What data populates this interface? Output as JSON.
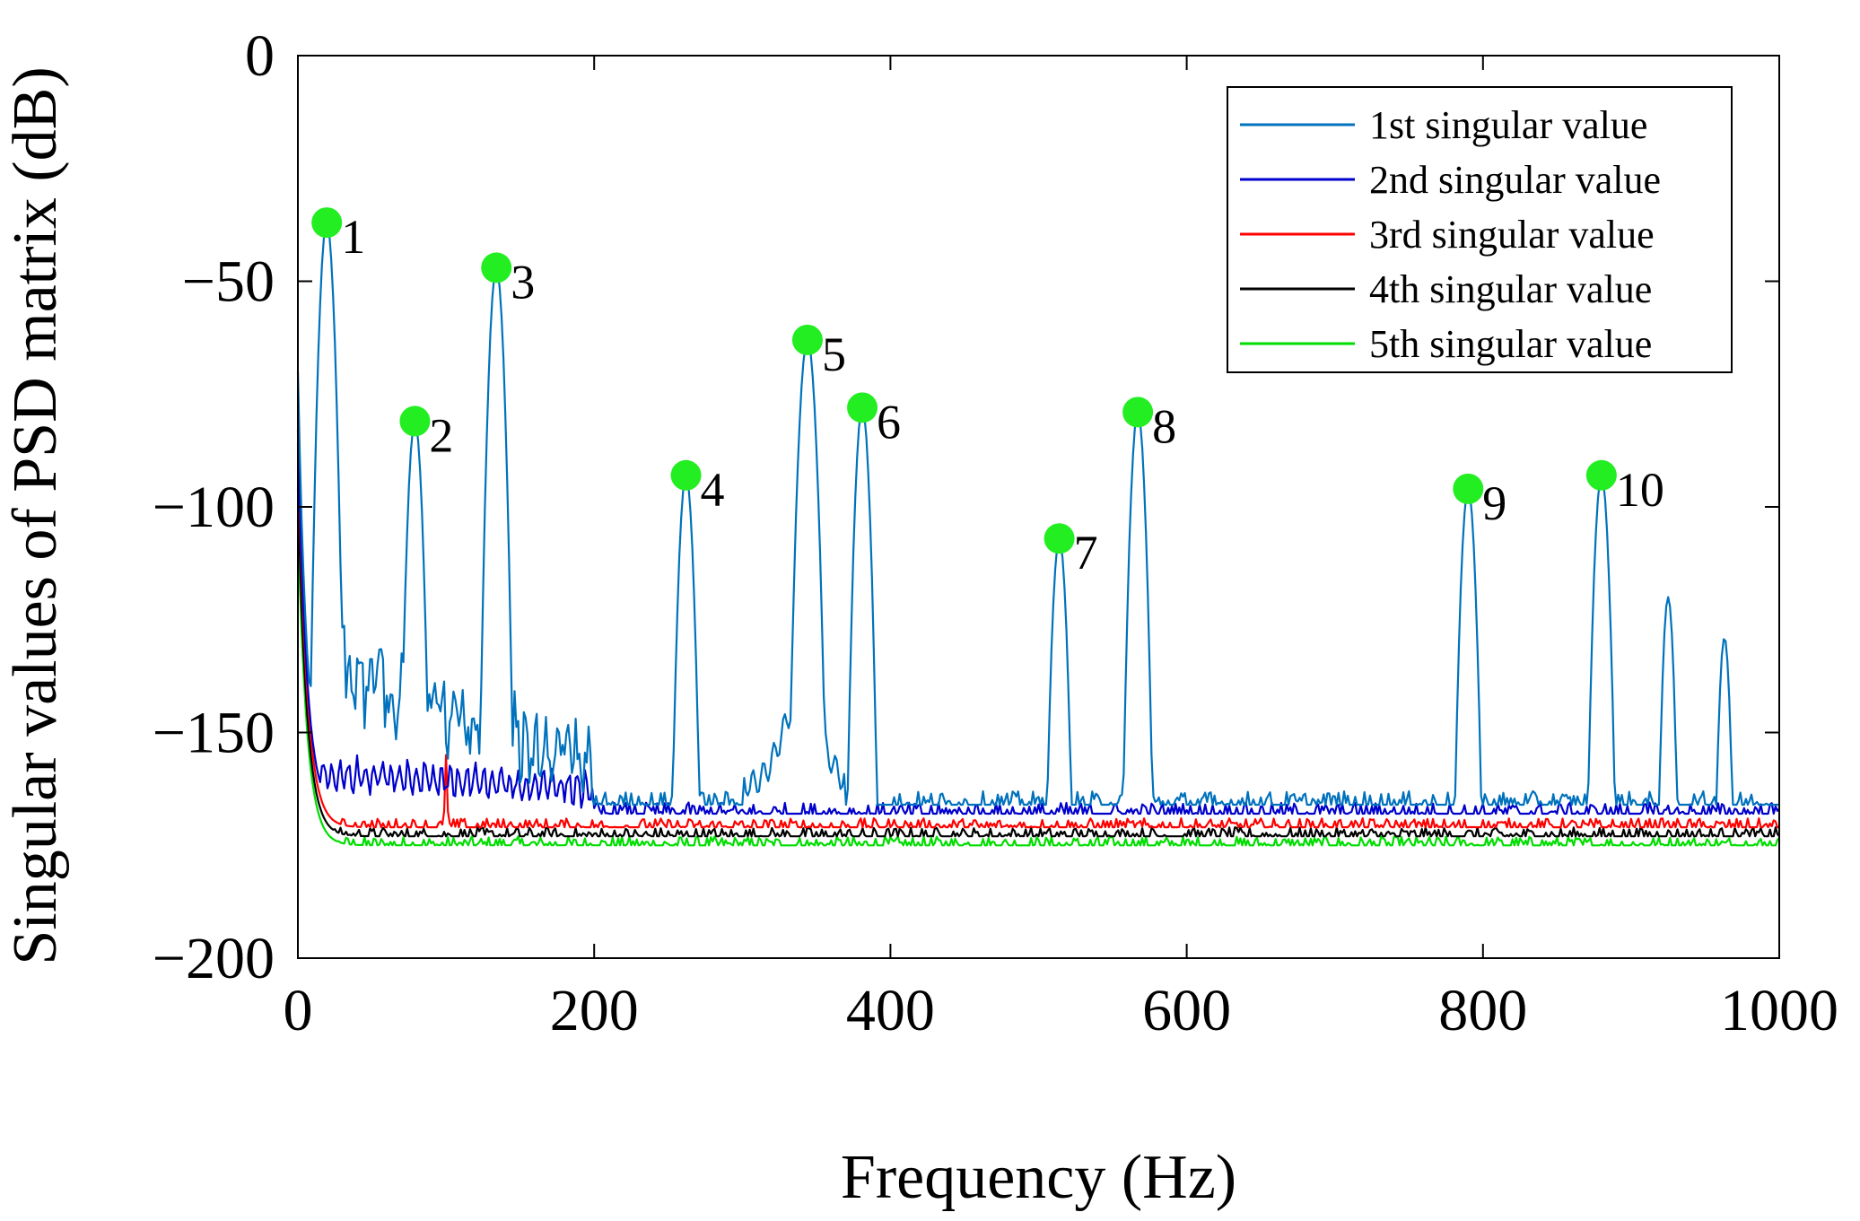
{
  "chart_data": {
    "type": "line",
    "xlabel": "Frequency (Hz)",
    "ylabel": "Singular values of PSD matrix (dB)",
    "xlim": [
      0,
      1000
    ],
    "ylim": [
      -200,
      0
    ],
    "xticks": [
      0,
      200,
      400,
      600,
      800,
      1000
    ],
    "yticks": [
      0,
      -50,
      -100,
      -150,
      -200
    ],
    "xtick_labels": [
      "0",
      "200",
      "400",
      "600",
      "800",
      "1000"
    ],
    "ytick_labels": [
      "0",
      "−50",
      "−100",
      "−150",
      "−200"
    ],
    "grid": false,
    "legend_position": "top-right",
    "series": [
      {
        "name": "1st singular value",
        "color": "#0072BD",
        "floor": -166,
        "noise": 3,
        "start": -70,
        "peaks": [
          [
            19.5,
            -37,
            3
          ],
          [
            79,
            -81,
            3
          ],
          [
            134,
            -47,
            3
          ],
          [
            262,
            -93,
            3
          ],
          [
            344,
            -63,
            3.5
          ],
          [
            381,
            -78,
            3
          ],
          [
            514,
            -107,
            3
          ],
          [
            567,
            -79,
            3
          ],
          [
            790,
            -96,
            3
          ],
          [
            880,
            -93,
            3
          ],
          [
            925,
            -120,
            2.5
          ],
          [
            963,
            -129,
            2.5
          ]
        ]
      },
      {
        "name": "2nd singular value",
        "color": "#0000CC",
        "floor": -168,
        "noise": 2.5,
        "start": -83,
        "peaks": []
      },
      {
        "name": "3rd singular value",
        "color": "#FF0000",
        "floor": -171,
        "noise": 2,
        "start": -86,
        "peaks": [
          [
            100,
            -155,
            1
          ]
        ]
      },
      {
        "name": "4th singular value",
        "color": "#000000",
        "floor": -173,
        "noise": 2,
        "start": -96,
        "peaks": []
      },
      {
        "name": "5th singular value",
        "color": "#00DD00",
        "floor": -175,
        "noise": 2,
        "start": -103,
        "peaks": []
      }
    ],
    "peak_markers": [
      {
        "label": "1",
        "x": 19.5,
        "y": -37
      },
      {
        "label": "2",
        "x": 79,
        "y": -81
      },
      {
        "label": "3",
        "x": 134,
        "y": -47
      },
      {
        "label": "4",
        "x": 262,
        "y": -93
      },
      {
        "label": "5",
        "x": 344,
        "y": -63
      },
      {
        "label": "6",
        "x": 381,
        "y": -78
      },
      {
        "label": "7",
        "x": 514,
        "y": -107
      },
      {
        "label": "8",
        "x": 567,
        "y": -79
      },
      {
        "label": "9",
        "x": 790,
        "y": -96
      },
      {
        "label": "10",
        "x": 880,
        "y": -93
      }
    ],
    "marker_color": "#22EE22"
  }
}
